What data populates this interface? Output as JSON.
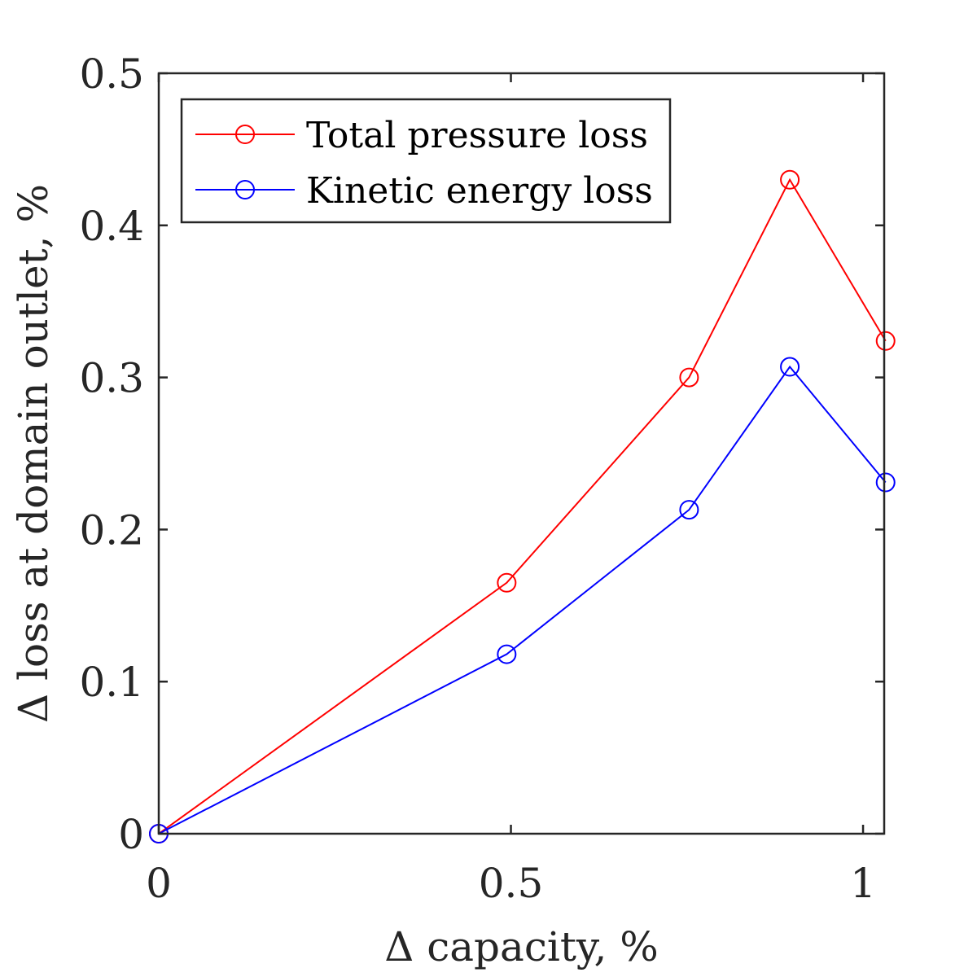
{
  "chart_data": {
    "type": "line",
    "title": "",
    "xlabel": "Δ capacity, %",
    "ylabel": "Δ loss at domain outlet, %",
    "xlim": [
      0,
      1.03
    ],
    "ylim": [
      0,
      0.5
    ],
    "xticks": [
      0,
      0.5,
      1
    ],
    "xtick_labels": [
      "0",
      "0.5",
      "1"
    ],
    "yticks": [
      0,
      0.1,
      0.2,
      0.3,
      0.4,
      0.5
    ],
    "ytick_labels": [
      "0",
      "0.1",
      "0.2",
      "0.3",
      "0.4",
      "0.5"
    ],
    "grid": false,
    "legend_position": "top-left",
    "series": [
      {
        "name": "Total pressure loss",
        "color": "#ff0000",
        "marker": "circle",
        "x": [
          0,
          0.494,
          0.753,
          0.896,
          1.032
        ],
        "y": [
          0,
          0.165,
          0.3,
          0.43,
          0.324
        ]
      },
      {
        "name": "Kinetic energy loss",
        "color": "#0000ff",
        "marker": "circle",
        "x": [
          0,
          0.494,
          0.753,
          0.896,
          1.032
        ],
        "y": [
          0,
          0.118,
          0.213,
          0.307,
          0.231
        ]
      }
    ]
  }
}
